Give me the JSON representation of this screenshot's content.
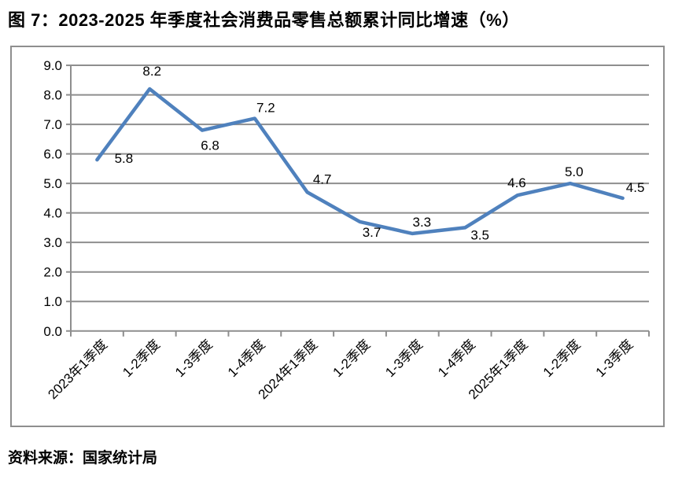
{
  "page": {
    "title": "图 7：2023-2025 年季度社会消费品零售总额累计同比增速（%）",
    "source": "资料来源：国家统计局"
  },
  "chart_data": {
    "type": "line",
    "title": "图 7：2023-2025 年季度社会消费品零售总额累计同比增速（%）",
    "categories": [
      "2023年1季度",
      "1-2季度",
      "1-3季度",
      "1-4季度",
      "2024年1季度",
      "1-2季度",
      "1-3季度",
      "1-4季度",
      "2025年1季度",
      "1-2季度",
      "1-3季度"
    ],
    "values": [
      5.8,
      8.2,
      6.8,
      7.2,
      4.7,
      3.7,
      3.3,
      3.5,
      4.6,
      5.0,
      4.5
    ],
    "data_labels": [
      "5.8",
      "8.2",
      "6.8",
      "7.2",
      "4.7",
      "3.7",
      "3.3",
      "3.5",
      "4.6",
      "5.0",
      "4.5"
    ],
    "xlabel": "",
    "ylabel": "",
    "ylim": [
      0.0,
      9.0
    ],
    "ytick_step": 1.0,
    "ytick_format_decimals": 1,
    "grid": true,
    "legend": "none",
    "line_color": "#4F81BD",
    "gridline_color": "#8E8E8E",
    "axis_color": "#8E8E8E",
    "text_color": "#000000",
    "source": "资料来源：国家统计局"
  }
}
